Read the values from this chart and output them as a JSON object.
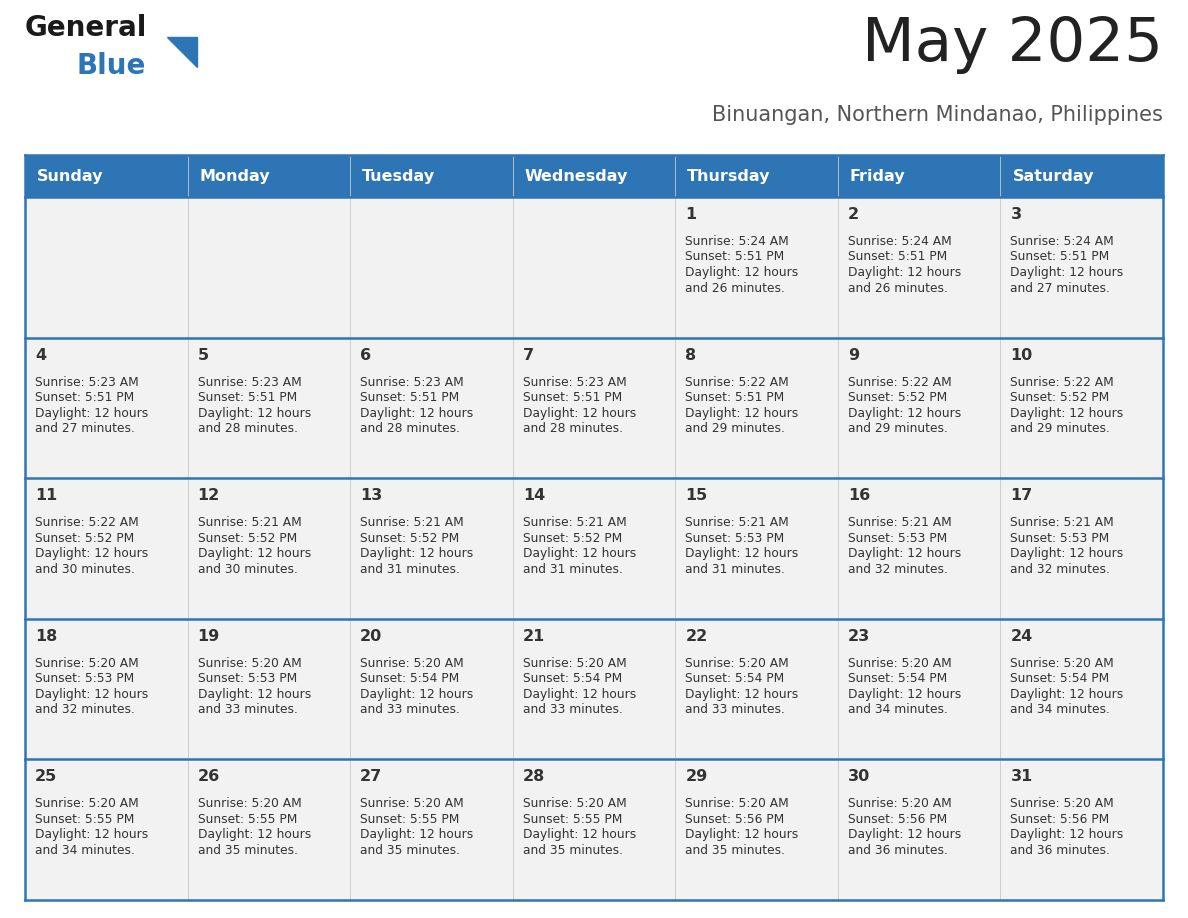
{
  "title": "May 2025",
  "subtitle": "Binuangan, Northern Mindanao, Philippines",
  "days_of_week": [
    "Sunday",
    "Monday",
    "Tuesday",
    "Wednesday",
    "Thursday",
    "Friday",
    "Saturday"
  ],
  "header_bg": "#2E75B6",
  "header_text": "#FFFFFF",
  "row_bg": "#F2F2F2",
  "cell_border": "#2E75B6",
  "day_number_color": "#333333",
  "info_text_color": "#333333",
  "title_color": "#222222",
  "subtitle_color": "#555555",
  "calendar": [
    [
      {
        "day": null,
        "sunrise": null,
        "sunset": null,
        "daylight": null
      },
      {
        "day": null,
        "sunrise": null,
        "sunset": null,
        "daylight": null
      },
      {
        "day": null,
        "sunrise": null,
        "sunset": null,
        "daylight": null
      },
      {
        "day": null,
        "sunrise": null,
        "sunset": null,
        "daylight": null
      },
      {
        "day": 1,
        "sunrise": "5:24 AM",
        "sunset": "5:51 PM",
        "daylight": "12 hours and 26 minutes."
      },
      {
        "day": 2,
        "sunrise": "5:24 AM",
        "sunset": "5:51 PM",
        "daylight": "12 hours and 26 minutes."
      },
      {
        "day": 3,
        "sunrise": "5:24 AM",
        "sunset": "5:51 PM",
        "daylight": "12 hours and 27 minutes."
      }
    ],
    [
      {
        "day": 4,
        "sunrise": "5:23 AM",
        "sunset": "5:51 PM",
        "daylight": "12 hours and 27 minutes."
      },
      {
        "day": 5,
        "sunrise": "5:23 AM",
        "sunset": "5:51 PM",
        "daylight": "12 hours and 28 minutes."
      },
      {
        "day": 6,
        "sunrise": "5:23 AM",
        "sunset": "5:51 PM",
        "daylight": "12 hours and 28 minutes."
      },
      {
        "day": 7,
        "sunrise": "5:23 AM",
        "sunset": "5:51 PM",
        "daylight": "12 hours and 28 minutes."
      },
      {
        "day": 8,
        "sunrise": "5:22 AM",
        "sunset": "5:51 PM",
        "daylight": "12 hours and 29 minutes."
      },
      {
        "day": 9,
        "sunrise": "5:22 AM",
        "sunset": "5:52 PM",
        "daylight": "12 hours and 29 minutes."
      },
      {
        "day": 10,
        "sunrise": "5:22 AM",
        "sunset": "5:52 PM",
        "daylight": "12 hours and 29 minutes."
      }
    ],
    [
      {
        "day": 11,
        "sunrise": "5:22 AM",
        "sunset": "5:52 PM",
        "daylight": "12 hours and 30 minutes."
      },
      {
        "day": 12,
        "sunrise": "5:21 AM",
        "sunset": "5:52 PM",
        "daylight": "12 hours and 30 minutes."
      },
      {
        "day": 13,
        "sunrise": "5:21 AM",
        "sunset": "5:52 PM",
        "daylight": "12 hours and 31 minutes."
      },
      {
        "day": 14,
        "sunrise": "5:21 AM",
        "sunset": "5:52 PM",
        "daylight": "12 hours and 31 minutes."
      },
      {
        "day": 15,
        "sunrise": "5:21 AM",
        "sunset": "5:53 PM",
        "daylight": "12 hours and 31 minutes."
      },
      {
        "day": 16,
        "sunrise": "5:21 AM",
        "sunset": "5:53 PM",
        "daylight": "12 hours and 32 minutes."
      },
      {
        "day": 17,
        "sunrise": "5:21 AM",
        "sunset": "5:53 PM",
        "daylight": "12 hours and 32 minutes."
      }
    ],
    [
      {
        "day": 18,
        "sunrise": "5:20 AM",
        "sunset": "5:53 PM",
        "daylight": "12 hours and 32 minutes."
      },
      {
        "day": 19,
        "sunrise": "5:20 AM",
        "sunset": "5:53 PM",
        "daylight": "12 hours and 33 minutes."
      },
      {
        "day": 20,
        "sunrise": "5:20 AM",
        "sunset": "5:54 PM",
        "daylight": "12 hours and 33 minutes."
      },
      {
        "day": 21,
        "sunrise": "5:20 AM",
        "sunset": "5:54 PM",
        "daylight": "12 hours and 33 minutes."
      },
      {
        "day": 22,
        "sunrise": "5:20 AM",
        "sunset": "5:54 PM",
        "daylight": "12 hours and 33 minutes."
      },
      {
        "day": 23,
        "sunrise": "5:20 AM",
        "sunset": "5:54 PM",
        "daylight": "12 hours and 34 minutes."
      },
      {
        "day": 24,
        "sunrise": "5:20 AM",
        "sunset": "5:54 PM",
        "daylight": "12 hours and 34 minutes."
      }
    ],
    [
      {
        "day": 25,
        "sunrise": "5:20 AM",
        "sunset": "5:55 PM",
        "daylight": "12 hours and 34 minutes."
      },
      {
        "day": 26,
        "sunrise": "5:20 AM",
        "sunset": "5:55 PM",
        "daylight": "12 hours and 35 minutes."
      },
      {
        "day": 27,
        "sunrise": "5:20 AM",
        "sunset": "5:55 PM",
        "daylight": "12 hours and 35 minutes."
      },
      {
        "day": 28,
        "sunrise": "5:20 AM",
        "sunset": "5:55 PM",
        "daylight": "12 hours and 35 minutes."
      },
      {
        "day": 29,
        "sunrise": "5:20 AM",
        "sunset": "5:56 PM",
        "daylight": "12 hours and 35 minutes."
      },
      {
        "day": 30,
        "sunrise": "5:20 AM",
        "sunset": "5:56 PM",
        "daylight": "12 hours and 36 minutes."
      },
      {
        "day": 31,
        "sunrise": "5:20 AM",
        "sunset": "5:56 PM",
        "daylight": "12 hours and 36 minutes."
      }
    ]
  ],
  "logo_text_general": "General",
  "logo_text_blue": "Blue",
  "logo_color_general": "#1a1a1a",
  "logo_color_blue": "#2E75B6",
  "logo_triangle_color": "#2E75B6"
}
